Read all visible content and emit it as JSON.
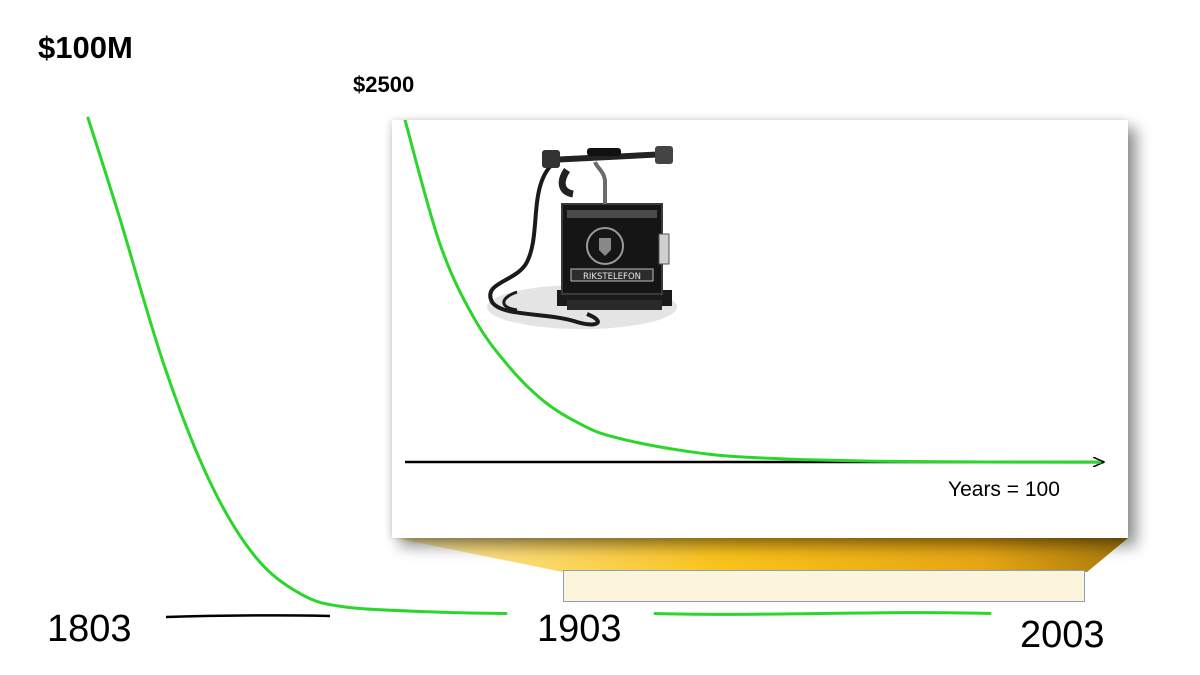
{
  "chart_data": [
    {
      "type": "line",
      "title": "",
      "xlabel": "",
      "ylabel": "",
      "y_max_label": "$100M",
      "tick_labels": [
        "1803",
        "1903",
        "2003"
      ],
      "x": [
        1803,
        1810,
        1820,
        1830,
        1840,
        1850,
        1860,
        1880,
        1903,
        1940,
        2003
      ],
      "series": [
        {
          "values": [
            100,
            80,
            50,
            27,
            12,
            4.5,
            1.8,
            0.8,
            0.5,
            0.5,
            0.5
          ]
        }
      ],
      "ylim": [
        0,
        100
      ],
      "grid": false,
      "colors": {
        "curve": "#2bd62b",
        "axis": "#000000"
      }
    },
    {
      "type": "line",
      "title": "",
      "xlabel": "Years = 100",
      "ylabel": "",
      "y_max_label": "$2500",
      "x": [
        0,
        5,
        10,
        15,
        20,
        25,
        30,
        40,
        50,
        70,
        100
      ],
      "series": [
        {
          "values": [
            2500,
            1600,
            1050,
            700,
            450,
            290,
            190,
            90,
            40,
            12,
            5
          ]
        }
      ],
      "ylim": [
        0,
        2500
      ],
      "grid": false,
      "image": "telephone-icon",
      "colors": {
        "curve": "#2bd62b",
        "axis": "#000000"
      }
    }
  ],
  "zoom_callout": {
    "colors": {
      "gold_top": "#fde9a6",
      "gold_mid": "#f9c21b",
      "gold_dark": "#a87a0c",
      "range_fill": "#fdf4dc",
      "range_border": "#8aa0bf"
    }
  }
}
